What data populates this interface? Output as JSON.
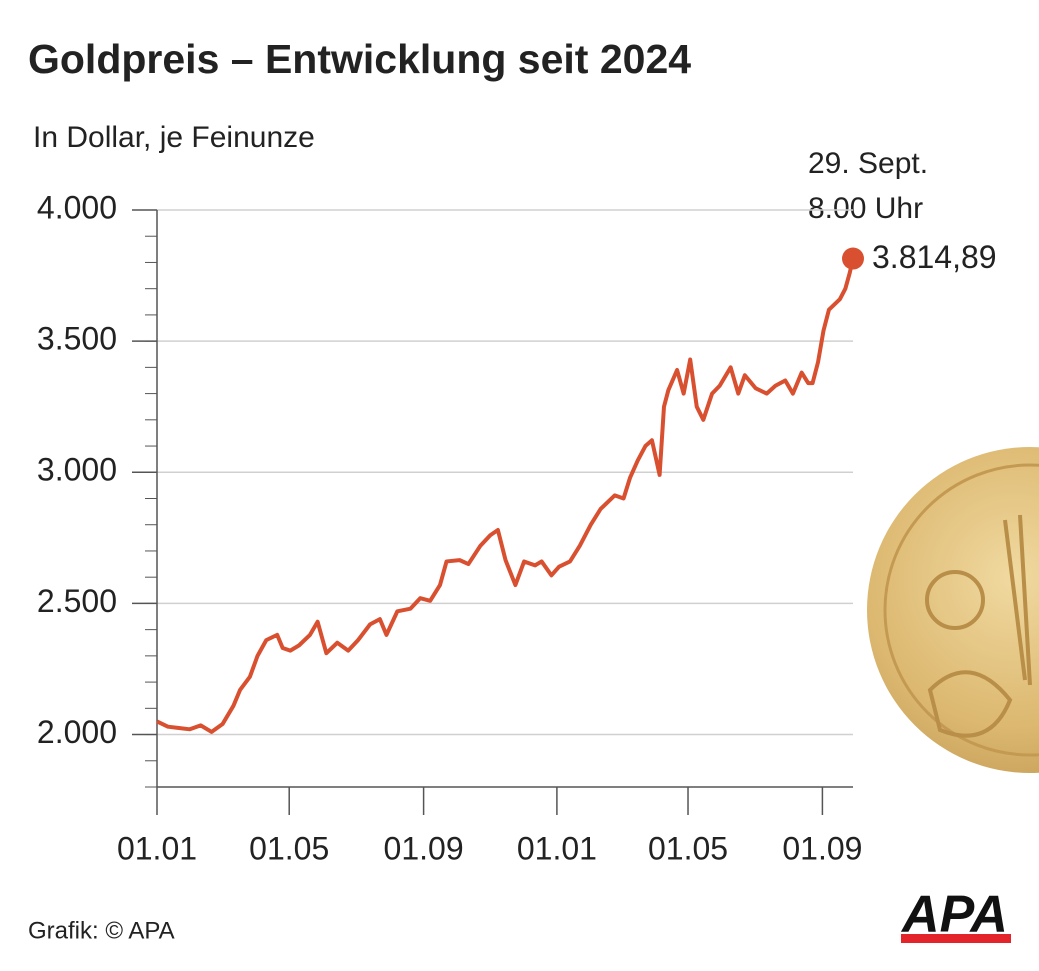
{
  "chart_data": {
    "type": "line",
    "title": "Goldpreis – Entwicklung seit 2024",
    "subtitle": "In Dollar, je Feinunze",
    "annotation": [
      "29. Sept.",
      "8.00 Uhr"
    ],
    "source": "Grafik: © APA",
    "logo": "APA",
    "x": [
      0,
      10,
      20,
      30,
      40,
      50,
      60,
      70,
      76,
      85,
      92,
      100,
      110,
      115,
      122,
      130,
      140,
      147,
      155,
      165,
      175,
      184,
      195,
      204,
      210,
      220,
      232,
      241,
      250,
      259,
      265,
      277,
      285,
      296,
      305,
      312,
      319,
      328,
      336,
      346,
      352,
      361,
      368,
      378,
      387,
      397,
      406,
      419,
      427,
      433,
      440,
      447,
      453,
      460,
      464,
      468,
      476,
      482,
      488,
      494,
      500,
      508,
      515,
      525,
      532,
      538,
      548,
      558,
      566,
      575,
      582,
      590,
      596,
      600,
      605,
      610,
      615,
      620,
      625,
      630,
      634,
      637
    ],
    "series": [
      {
        "color": "#d8502f",
        "values": [
          2050,
          2030,
          2025,
          2020,
          2035,
          2010,
          2040,
          2110,
          2170,
          2220,
          2300,
          2360,
          2380,
          2330,
          2320,
          2340,
          2380,
          2430,
          2310,
          2350,
          2320,
          2360,
          2420,
          2440,
          2380,
          2470,
          2480,
          2520,
          2510,
          2570,
          2660,
          2665,
          2650,
          2720,
          2760,
          2780,
          2665,
          2570,
          2660,
          2645,
          2660,
          2607,
          2640,
          2660,
          2720,
          2800,
          2860,
          2912,
          2900,
          2980,
          3045,
          3100,
          3122,
          2990,
          3250,
          3313,
          3390,
          3300,
          3430,
          3250,
          3200,
          3300,
          3330,
          3400,
          3300,
          3370,
          3320,
          3300,
          3330,
          3350,
          3300,
          3380,
          3340,
          3340,
          3420,
          3540,
          3620,
          3640,
          3660,
          3700,
          3760,
          3814.89
        ],
        "value_labels": [
          null,
          null,
          null,
          null,
          null,
          null,
          null,
          null,
          null,
          null,
          null,
          null,
          null,
          null,
          null,
          null,
          null,
          null,
          null,
          null,
          null,
          null,
          null,
          null,
          null,
          null,
          null,
          null,
          null,
          null,
          null,
          null,
          null,
          null,
          null,
          null,
          null,
          null,
          null,
          null,
          null,
          null,
          null,
          null,
          null,
          null,
          null,
          null,
          null,
          null,
          null,
          null,
          null,
          null,
          null,
          null,
          null,
          null,
          null,
          null,
          null,
          null,
          null,
          null,
          null,
          null,
          null,
          null,
          null,
          null,
          null,
          null,
          null,
          null,
          null,
          null,
          null,
          null,
          null,
          null,
          null,
          "3.814,89"
        ]
      }
    ],
    "xlim": [
      0,
      637
    ],
    "xticks": [
      {
        "value": 0,
        "label": "01.01"
      },
      {
        "value": 121,
        "label": "01.05"
      },
      {
        "value": 244,
        "label": "01.09"
      },
      {
        "value": 366,
        "label": "01.01"
      },
      {
        "value": 486,
        "label": "01.05"
      },
      {
        "value": 609,
        "label": "01.09"
      }
    ],
    "ylim": [
      1800,
      4000
    ],
    "yticks": [
      {
        "value": 2000,
        "label": "2.000"
      },
      {
        "value": 2500,
        "label": "2.500"
      },
      {
        "value": 3000,
        "label": "3.000"
      },
      {
        "value": 3500,
        "label": "3.500"
      },
      {
        "value": 4000,
        "label": "4.000"
      }
    ],
    "grid": true
  }
}
